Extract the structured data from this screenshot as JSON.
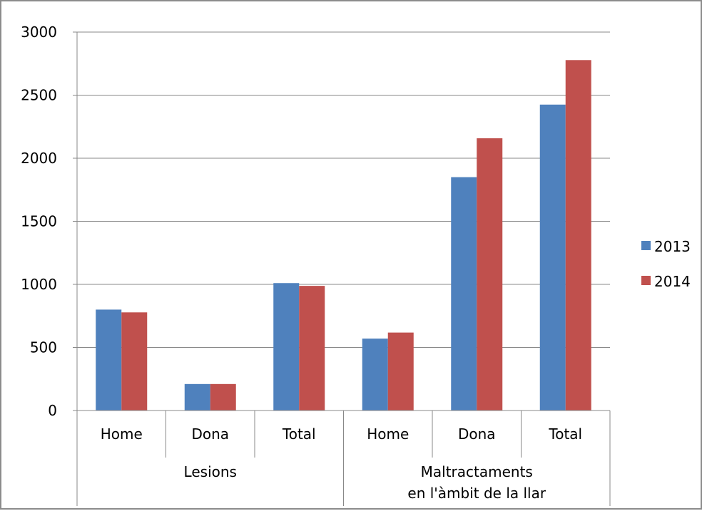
{
  "chart_data": {
    "type": "bar",
    "title": "",
    "xlabel": "",
    "ylabel": "",
    "ylim": [
      0,
      3000
    ],
    "yticks": [
      0,
      500,
      1000,
      1500,
      2000,
      2500,
      3000
    ],
    "grid": true,
    "legend_position": "right",
    "categories": [
      "Home",
      "Dona",
      "Total",
      "Home",
      "Dona",
      "Total"
    ],
    "groups": [
      {
        "label": [
          "Lesions"
        ],
        "categories": [
          "Home",
          "Dona",
          "Total"
        ]
      },
      {
        "label": [
          "Maltractaments",
          "en l'àmbit de la llar"
        ],
        "categories": [
          "Home",
          "Dona",
          "Total"
        ]
      }
    ],
    "series": [
      {
        "name": "2013",
        "color": "#4f81bd",
        "values": [
          800,
          210,
          1010,
          570,
          1850,
          2425
        ]
      },
      {
        "name": "2014",
        "color": "#c0504d",
        "values": [
          778,
          210,
          988,
          618,
          2158,
          2778
        ]
      }
    ]
  }
}
